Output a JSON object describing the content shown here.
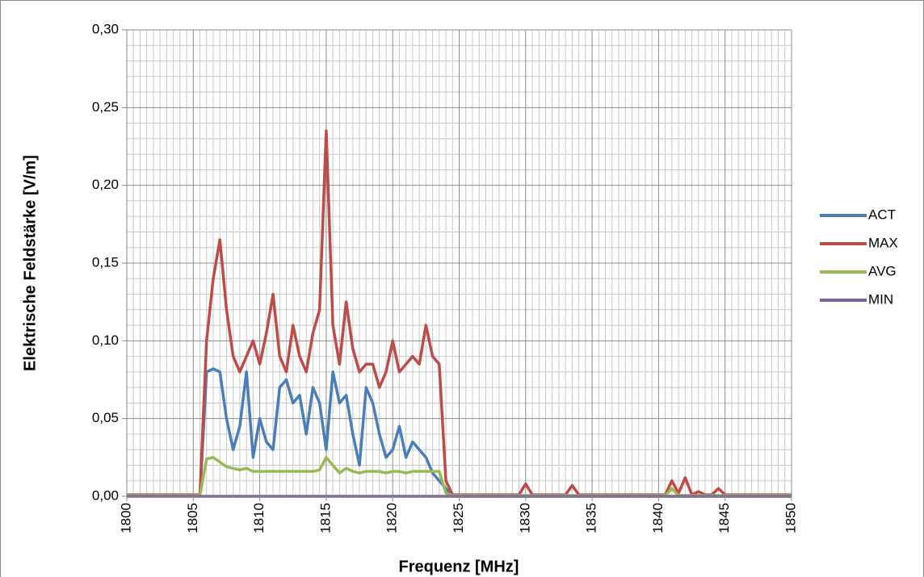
{
  "chart_data": {
    "type": "line",
    "x_label": "Frequenz [MHz]",
    "y_label": "Elektrische Feldstärke [V/m]",
    "x": [
      1800,
      1800.5,
      1801,
      1801.5,
      1802,
      1802.5,
      1803,
      1803.5,
      1804,
      1804.5,
      1805,
      1805.5,
      1806,
      1806.5,
      1807,
      1807.5,
      1808,
      1808.5,
      1809,
      1809.5,
      1810,
      1810.5,
      1811,
      1811.5,
      1812,
      1812.5,
      1813,
      1813.5,
      1814,
      1814.5,
      1815,
      1815.5,
      1816,
      1816.5,
      1817,
      1817.5,
      1818,
      1818.5,
      1819,
      1819.5,
      1820,
      1820.5,
      1821,
      1821.5,
      1822,
      1822.5,
      1823,
      1823.5,
      1824,
      1824.5,
      1825,
      1825.5,
      1826,
      1826.5,
      1827,
      1827.5,
      1828,
      1828.5,
      1829,
      1829.5,
      1830,
      1830.5,
      1831,
      1831.5,
      1832,
      1832.5,
      1833,
      1833.5,
      1834,
      1834.5,
      1835,
      1835.5,
      1836,
      1836.5,
      1837,
      1837.5,
      1838,
      1838.5,
      1839,
      1839.5,
      1840,
      1840.5,
      1841,
      1841.5,
      1842,
      1842.5,
      1843,
      1843.5,
      1844,
      1844.5,
      1845,
      1845.5,
      1846,
      1846.5,
      1847,
      1847.5,
      1848,
      1848.5,
      1849,
      1849.5,
      1850
    ],
    "series": [
      {
        "name": "ACT",
        "color": "#4a7ebb",
        "values": [
          0.0005,
          0.0005,
          0.0005,
          0.0005,
          0.0005,
          0.0005,
          0.0005,
          0.0005,
          0.0005,
          0.0005,
          0.0005,
          0.0005,
          0.08,
          0.082,
          0.08,
          0.05,
          0.03,
          0.045,
          0.08,
          0.025,
          0.05,
          0.035,
          0.03,
          0.07,
          0.075,
          0.06,
          0.065,
          0.04,
          0.07,
          0.06,
          0.03,
          0.08,
          0.06,
          0.065,
          0.04,
          0.02,
          0.07,
          0.06,
          0.04,
          0.025,
          0.03,
          0.045,
          0.025,
          0.035,
          0.03,
          0.025,
          0.015,
          0.01,
          0.005,
          0,
          0,
          0,
          0,
          0,
          0,
          0,
          0,
          0,
          0,
          0,
          0,
          0,
          0,
          0,
          0,
          0,
          0,
          0,
          0,
          0,
          0,
          0,
          0,
          0,
          0,
          0,
          0,
          0,
          0,
          0,
          0,
          0,
          0,
          0,
          0,
          0,
          0,
          0,
          0,
          0,
          0,
          0,
          0,
          0,
          0,
          0,
          0,
          0,
          0,
          0,
          0
        ]
      },
      {
        "name": "MAX",
        "color": "#be4b48",
        "values": [
          0.001,
          0.001,
          0.001,
          0.001,
          0.001,
          0.001,
          0.001,
          0.001,
          0.001,
          0.001,
          0.001,
          0.001,
          0.1,
          0.14,
          0.165,
          0.12,
          0.09,
          0.08,
          0.09,
          0.1,
          0.085,
          0.105,
          0.13,
          0.09,
          0.08,
          0.11,
          0.09,
          0.08,
          0.105,
          0.12,
          0.235,
          0.11,
          0.085,
          0.125,
          0.095,
          0.08,
          0.085,
          0.085,
          0.07,
          0.08,
          0.1,
          0.08,
          0.085,
          0.09,
          0.085,
          0.11,
          0.09,
          0.085,
          0.01,
          0.001,
          0.001,
          0.001,
          0.001,
          0.001,
          0.001,
          0.001,
          0.001,
          0.001,
          0.001,
          0.001,
          0.008,
          0.001,
          0.001,
          0.001,
          0.001,
          0.001,
          0.001,
          0.007,
          0.001,
          0.001,
          0.001,
          0.001,
          0.001,
          0.001,
          0.001,
          0.001,
          0.001,
          0.001,
          0.001,
          0.001,
          0.001,
          0.001,
          0.01,
          0.002,
          0.012,
          0.001,
          0.003,
          0.001,
          0.001,
          0.005,
          0.001,
          0.001,
          0.001,
          0.001,
          0.001,
          0.001,
          0.001,
          0.001,
          0.001,
          0.001,
          0.001
        ]
      },
      {
        "name": "AVG",
        "color": "#98b954",
        "values": [
          0.0005,
          0.0005,
          0.0005,
          0.0005,
          0.0005,
          0.0005,
          0.0005,
          0.0005,
          0.0005,
          0.0005,
          0.0005,
          0.0005,
          0.024,
          0.025,
          0.022,
          0.019,
          0.018,
          0.017,
          0.018,
          0.016,
          0.016,
          0.016,
          0.016,
          0.016,
          0.016,
          0.016,
          0.016,
          0.016,
          0.016,
          0.017,
          0.025,
          0.02,
          0.015,
          0.018,
          0.016,
          0.015,
          0.016,
          0.016,
          0.016,
          0.015,
          0.016,
          0.016,
          0.015,
          0.016,
          0.016,
          0.016,
          0.016,
          0.016,
          0.002,
          0.0005,
          0.0005,
          0.0005,
          0.0005,
          0.0005,
          0.0005,
          0.0005,
          0.0005,
          0.0005,
          0.0005,
          0.0005,
          0.0005,
          0.0005,
          0.0005,
          0.0005,
          0.0005,
          0.0005,
          0.0005,
          0.0005,
          0.0005,
          0.0005,
          0.0005,
          0.0005,
          0.0005,
          0.0005,
          0.0005,
          0.0005,
          0.0005,
          0.0005,
          0.0005,
          0.0005,
          0.0005,
          0.0005,
          0.005,
          0.0005,
          0.0005,
          0.0005,
          0.0005,
          0.0005,
          0.0005,
          0.0005,
          0.0005,
          0.0005,
          0.0005,
          0.0005,
          0.0005,
          0.0005,
          0.0005,
          0.0005,
          0.0005,
          0.0005,
          0.0005
        ]
      },
      {
        "name": "MIN",
        "color": "#7d60a0",
        "values": [
          0,
          0,
          0,
          0,
          0,
          0,
          0,
          0,
          0,
          0,
          0,
          0,
          0,
          0,
          0,
          0,
          0,
          0,
          0,
          0,
          0,
          0,
          0,
          0,
          0,
          0,
          0,
          0,
          0,
          0,
          0,
          0,
          0,
          0,
          0,
          0,
          0,
          0,
          0,
          0,
          0,
          0,
          0,
          0,
          0,
          0,
          0,
          0,
          0,
          0,
          0,
          0,
          0,
          0,
          0,
          0,
          0,
          0,
          0,
          0,
          0,
          0,
          0,
          0,
          0,
          0,
          0,
          0,
          0,
          0,
          0,
          0,
          0,
          0,
          0,
          0,
          0,
          0,
          0,
          0,
          0,
          0,
          0,
          0,
          0,
          0,
          0,
          0,
          0,
          0,
          0,
          0,
          0,
          0,
          0,
          0,
          0,
          0,
          0,
          0,
          0
        ]
      }
    ],
    "xlim": [
      1800,
      1850
    ],
    "xticks": [
      1800,
      1805,
      1810,
      1815,
      1820,
      1825,
      1830,
      1835,
      1840,
      1845,
      1850
    ],
    "ylim": [
      0,
      0.3
    ],
    "yticks": [
      {
        "value": 0,
        "label": "0,00"
      },
      {
        "value": 0.05,
        "label": "0,05"
      },
      {
        "value": 0.1,
        "label": "0,10"
      },
      {
        "value": 0.15,
        "label": "0,15"
      },
      {
        "value": 0.2,
        "label": "0,20"
      },
      {
        "value": 0.25,
        "label": "0,25"
      },
      {
        "value": 0.3,
        "label": "0,30"
      }
    ],
    "grid": true,
    "minor_grid": true,
    "legend": "right"
  }
}
